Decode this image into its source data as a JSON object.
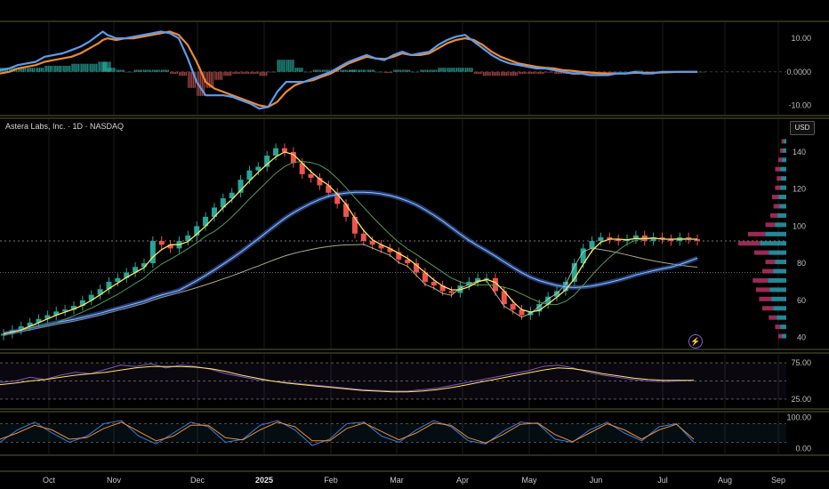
{
  "header": {
    "symbol_title": "Astera Labs, Inc. · 1D · NASDAQ",
    "currency_button": "USD"
  },
  "chart_data": [
    {
      "type": "line",
      "panel": "macd",
      "yticks": [
        "10.00",
        "0.0000",
        "-10.00"
      ],
      "ylim": [
        -12,
        14
      ],
      "x": [
        0,
        10,
        20,
        30,
        40,
        50,
        60,
        70,
        80,
        90,
        100,
        110,
        115,
        120,
        130,
        140,
        150,
        160,
        170,
        180,
        190,
        200,
        210,
        220,
        230,
        240,
        250,
        260,
        270,
        280,
        290,
        300,
        310,
        320,
        330,
        340,
        350,
        360,
        370,
        380,
        390
      ],
      "series": [
        {
          "color": "#5b9cf0",
          "values": [
            0.5,
            1,
            2,
            2.5,
            3,
            4.5,
            5,
            5.5,
            6.5,
            7.5,
            9,
            11,
            12,
            11,
            10,
            10,
            10.5,
            11,
            11.5,
            12,
            11.5,
            10,
            4,
            -3,
            -7,
            -7,
            -7,
            -7.5,
            -8.5,
            -9.5,
            -11,
            -10.5,
            -6,
            -3,
            -3,
            -3,
            -2,
            -1,
            0,
            1.5,
            3
          ]
        },
        {
          "color": "#ee8a32",
          "values": [
            -0.5,
            0,
            1,
            1.5,
            2,
            3,
            3.5,
            4,
            4.5,
            5.5,
            7,
            8.5,
            9.5,
            10,
            9.5,
            10,
            10,
            10.5,
            11,
            11.5,
            12,
            11,
            8,
            3,
            -3,
            -5,
            -6,
            -7,
            -8,
            -9,
            -10,
            -10.5,
            -9,
            -6,
            -4,
            -3,
            -2.5,
            -1.5,
            -0.5,
            1,
            2.5
          ]
        }
      ],
      "x2": [
        390,
        400,
        410,
        420,
        430,
        440,
        450,
        460,
        470,
        480,
        490,
        500,
        510,
        520,
        530,
        540,
        550,
        560,
        570,
        580,
        590,
        600,
        610,
        620,
        630,
        640,
        650,
        660,
        670,
        680,
        690,
        700,
        710,
        720,
        730,
        740,
        750,
        760,
        770,
        780
      ],
      "series2": [
        {
          "color": "#5b9cf0",
          "values": [
            3,
            4,
            5,
            4,
            3.5,
            5,
            6,
            5,
            5.5,
            6,
            8,
            9.5,
            10.5,
            11,
            9,
            7,
            5,
            3.5,
            2.5,
            2,
            1.5,
            1,
            1,
            0.5,
            0,
            -0.5,
            -0.5,
            -1,
            -1,
            -1,
            -0.5,
            -0.5,
            0,
            -0.5,
            -0.5,
            0,
            0,
            0,
            0,
            0
          ]
        },
        {
          "color": "#ee8a32",
          "values": [
            2.5,
            3.5,
            4.5,
            4,
            3.8,
            4.5,
            5.5,
            5,
            5,
            5.5,
            7,
            8.5,
            9.5,
            10,
            9.5,
            8,
            6,
            4.5,
            3.5,
            2.5,
            2,
            1.5,
            1.2,
            1,
            0.5,
            0.3,
            0,
            -0.2,
            -0.4,
            -0.5,
            -0.5,
            -0.5,
            -0.3,
            -0.3,
            -0.3,
            -0.2,
            -0.1,
            0,
            0,
            0
          ]
        }
      ]
    },
    {
      "type": "candlestick",
      "panel": "price",
      "ylim": [
        35,
        150
      ],
      "yticks": [
        140,
        120,
        100,
        80,
        60,
        40
      ],
      "current_price": 92,
      "reference_line": 75,
      "closes": [
        42,
        44,
        46,
        48,
        50,
        52,
        54,
        55,
        57,
        60,
        63,
        66,
        70,
        72,
        75,
        78,
        80,
        92,
        90,
        88,
        92,
        95,
        100,
        105,
        110,
        115,
        118,
        125,
        130,
        132,
        138,
        142,
        140,
        134,
        128,
        126,
        122,
        118,
        112,
        105,
        96,
        92,
        90,
        88,
        86,
        82,
        80,
        75,
        70,
        68,
        65,
        64,
        68,
        70,
        72,
        72,
        65,
        58,
        55,
        52,
        54,
        58,
        62,
        65,
        70,
        80,
        88,
        92,
        94,
        93,
        92,
        93,
        95,
        92,
        94,
        93,
        92,
        94,
        93,
        92
      ],
      "volume_profile_levels": [
        40,
        45,
        50,
        55,
        60,
        65,
        70,
        75,
        80,
        85,
        90,
        95,
        100,
        105,
        110,
        115,
        120,
        125,
        130,
        135,
        140,
        145
      ],
      "volume_profile_sizes": [
        10,
        14,
        22,
        30,
        34,
        38,
        42,
        30,
        26,
        40,
        60,
        48,
        26,
        20,
        16,
        18,
        14,
        12,
        14,
        10,
        8,
        6
      ]
    },
    {
      "type": "line",
      "panel": "rsi",
      "yticks": [
        "75.00",
        "25.00"
      ],
      "ylim": [
        15,
        85
      ],
      "values": [
        48,
        50,
        55,
        52,
        58,
        62,
        60,
        66,
        72,
        70,
        74,
        68,
        72,
        70,
        66,
        60,
        56,
        52,
        50,
        48,
        46,
        44,
        42,
        40,
        38,
        37,
        36,
        36,
        38,
        40,
        44,
        48,
        52,
        56,
        60,
        64,
        70,
        72,
        68,
        62,
        58,
        55,
        52,
        50,
        49,
        50,
        51
      ],
      "signal": [
        45,
        47,
        50,
        52,
        55,
        58,
        60,
        62,
        65,
        68,
        70,
        70,
        70,
        69,
        67,
        63,
        58,
        54,
        50,
        47,
        45,
        43,
        41,
        39,
        37,
        36,
        35,
        35,
        36,
        38,
        41,
        45,
        49,
        53,
        57,
        61,
        65,
        68,
        67,
        64,
        60,
        57,
        54,
        52,
        51,
        51,
        51
      ]
    },
    {
      "type": "line",
      "panel": "stochastic",
      "yticks": [
        "100.00",
        "0.00"
      ],
      "ylim": [
        -10,
        110
      ],
      "values": [
        20,
        60,
        85,
        50,
        20,
        40,
        80,
        90,
        40,
        15,
        50,
        85,
        70,
        20,
        30,
        75,
        90,
        60,
        10,
        30,
        80,
        85,
        40,
        20,
        60,
        90,
        70,
        25,
        15,
        55,
        85,
        80,
        30,
        20,
        60,
        85,
        50,
        25,
        70,
        80,
        20
      ],
      "signal": [
        30,
        50,
        75,
        60,
        30,
        35,
        65,
        85,
        55,
        25,
        40,
        75,
        75,
        35,
        28,
        60,
        85,
        70,
        25,
        25,
        65,
        82,
        55,
        28,
        50,
        82,
        75,
        35,
        18,
        45,
        78,
        82,
        45,
        22,
        50,
        80,
        60,
        30,
        60,
        78,
        30
      ]
    }
  ],
  "x_axis": {
    "labels": [
      "Oct",
      "Nov",
      "Dec",
      "2025",
      "Feb",
      "Mar",
      "Apr",
      "May",
      "Jun",
      "Jul",
      "Aug",
      "Sep"
    ]
  },
  "colors": {
    "up": "#26a69a",
    "down": "#ef5350",
    "fast_ma": "#ffe65c",
    "ma_band": "#3b6fd6",
    "rsi": "#7e57c2",
    "macd": "#5b9cf0",
    "signal": "#ee8a32"
  }
}
